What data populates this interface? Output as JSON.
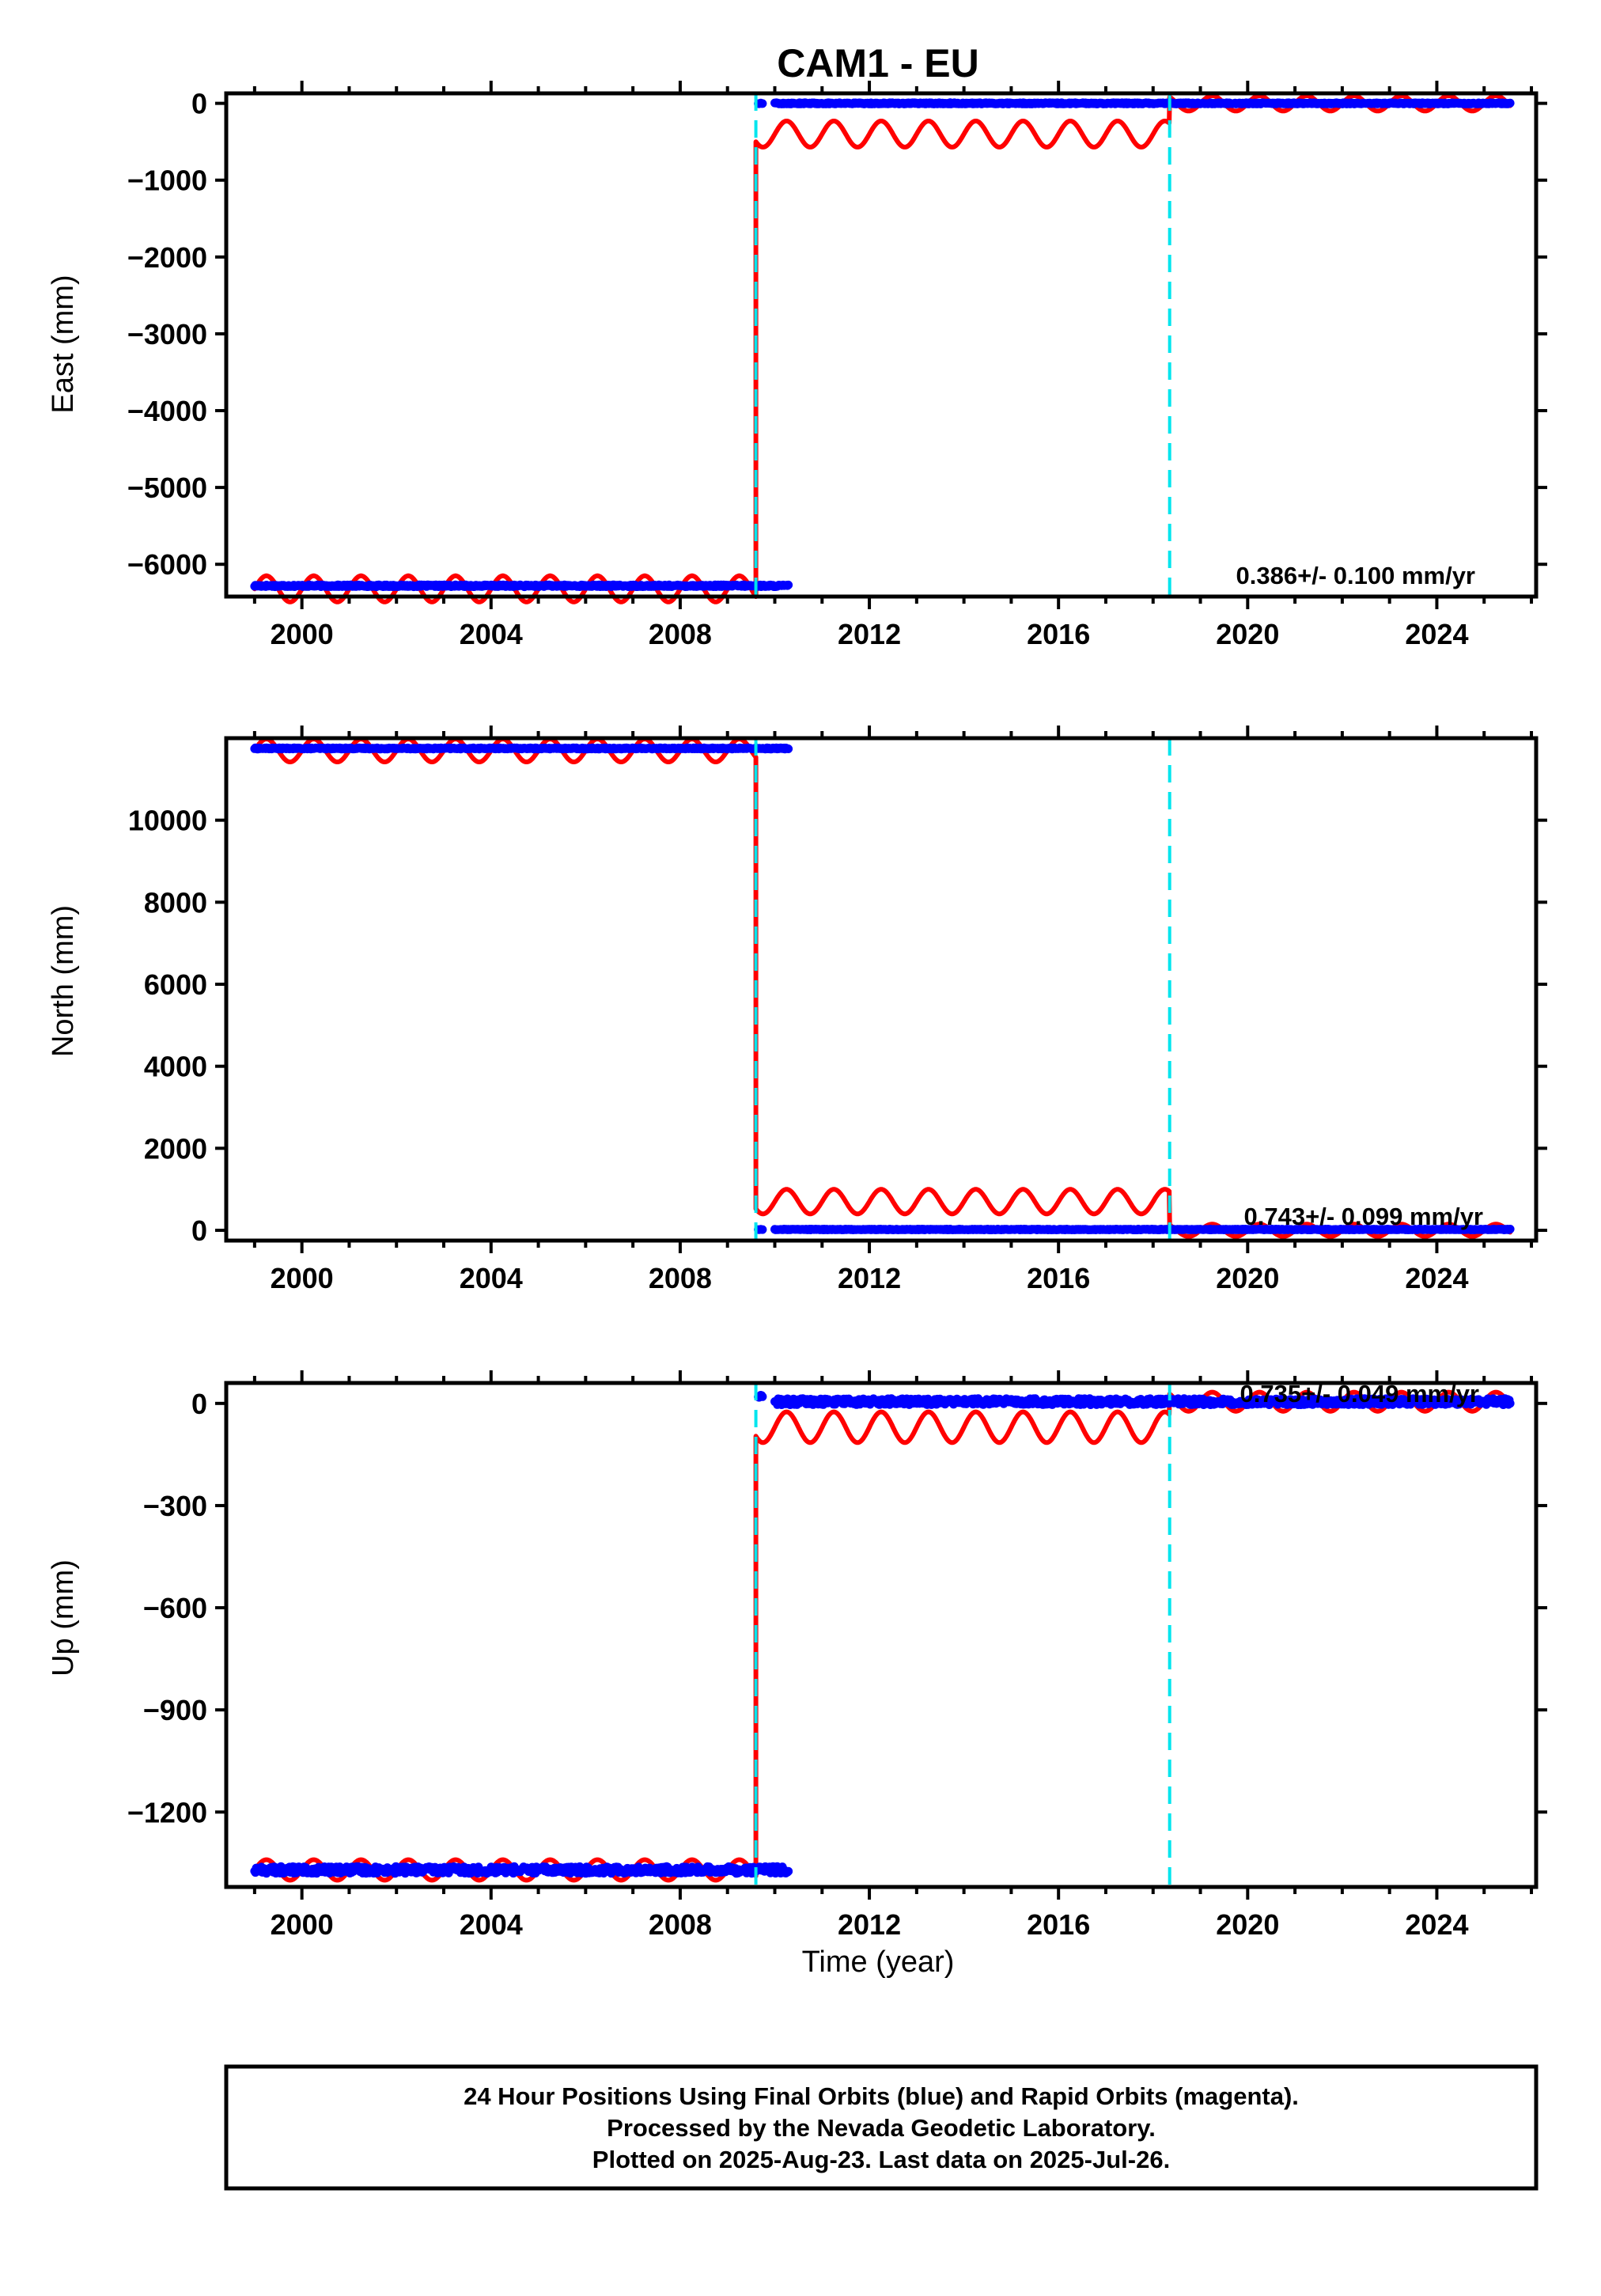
{
  "chart_data": {
    "type": "scatter",
    "title": "CAM1 - EU",
    "xlabel": "Time (year)",
    "xlim": [
      1998.4,
      2026.1
    ],
    "x_ticks": [
      "2000",
      "2004",
      "2008",
      "2012",
      "2016",
      "2020",
      "2024"
    ],
    "offset_markers": [
      2009.6,
      2018.35
    ],
    "colors": {
      "final_orbits": "#0000ff",
      "model": "#ff0000",
      "offset": "#00e5ee",
      "frame": "#000000"
    },
    "panels": [
      {
        "ylabel": "East (mm)",
        "ylim": [
          -6420,
          130
        ],
        "y_ticks": [
          0,
          -1000,
          -2000,
          -3000,
          -4000,
          -5000,
          -6000
        ],
        "rate_text": "0.386+/- 0.100 mm/yr",
        "series": [
          {
            "segments": [
              {
                "x_start": 1999.0,
                "x_end": 2010.3,
                "level": -6280,
                "noise": 12
              },
              {
                "x_start": 2009.65,
                "x_end": 2009.75,
                "level": 0,
                "noise": 6
              },
              {
                "x_start": 2010.0,
                "x_end": 2018.35,
                "level": 0,
                "noise": 8
              },
              {
                "x_start": 2018.35,
                "x_end": 2025.56,
                "level": 0,
                "noise": 8
              }
            ]
          },
          {
            "segments": [
              {
                "x_start": 1999.0,
                "x_end": 2009.6,
                "level": -6320,
                "amplitude": 170
              },
              {
                "x_start": 2009.6,
                "x_end": 2018.35,
                "level": -400,
                "amplitude": 170
              },
              {
                "x_start": 2018.35,
                "x_end": 2025.56,
                "level": 0,
                "amplitude": 100
              }
            ]
          }
        ]
      },
      {
        "ylabel": "North (mm)",
        "ylim": [
          -250,
          12000
        ],
        "y_ticks": [
          0,
          2000,
          4000,
          6000,
          8000,
          10000
        ],
        "rate_text": "0.743+/- 0.099 mm/yr",
        "series": [
          {
            "segments": [
              {
                "x_start": 1999.0,
                "x_end": 2010.3,
                "level": 11750,
                "noise": 15
              },
              {
                "x_start": 2009.65,
                "x_end": 2009.75,
                "level": 20,
                "noise": 6
              },
              {
                "x_start": 2010.0,
                "x_end": 2018.35,
                "level": 20,
                "noise": 10
              },
              {
                "x_start": 2018.35,
                "x_end": 2025.56,
                "level": 20,
                "noise": 10
              }
            ]
          },
          {
            "segments": [
              {
                "x_start": 1999.0,
                "x_end": 2009.6,
                "level": 11700,
                "amplitude": 280
              },
              {
                "x_start": 2009.6,
                "x_end": 2018.35,
                "level": 700,
                "amplitude": 300
              },
              {
                "x_start": 2018.35,
                "x_end": 2025.56,
                "level": 0,
                "amplitude": 150
              }
            ]
          }
        ]
      },
      {
        "ylabel": "Up (mm)",
        "ylim": [
          -1420,
          60
        ],
        "y_ticks": [
          0,
          -300,
          -600,
          -900,
          -1200
        ],
        "rate_text": "0.735+/- 0.049 mm/yr",
        "series": [
          {
            "segments": [
              {
                "x_start": 1999.0,
                "x_end": 2010.3,
                "level": -1370,
                "noise": 10
              },
              {
                "x_start": 2009.65,
                "x_end": 2009.75,
                "level": 20,
                "noise": 5
              },
              {
                "x_start": 2010.0,
                "x_end": 2018.35,
                "level": 5,
                "noise": 9
              },
              {
                "x_start": 2018.35,
                "x_end": 2025.56,
                "level": 5,
                "noise": 9
              }
            ]
          },
          {
            "segments": [
              {
                "x_start": 1999.0,
                "x_end": 2009.6,
                "level": -1370,
                "amplitude": 30
              },
              {
                "x_start": 2009.6,
                "x_end": 2018.35,
                "level": -70,
                "amplitude": 45
              },
              {
                "x_start": 2018.35,
                "x_end": 2025.56,
                "level": 5,
                "amplitude": 28
              }
            ]
          }
        ]
      }
    ],
    "footer": [
      "24 Hour Positions Using Final Orbits (blue) and Rapid Orbits (magenta).",
      "Processed by the Nevada Geodetic Laboratory.",
      "Plotted on 2025-Aug-23. Last data on 2025-Jul-26."
    ]
  }
}
